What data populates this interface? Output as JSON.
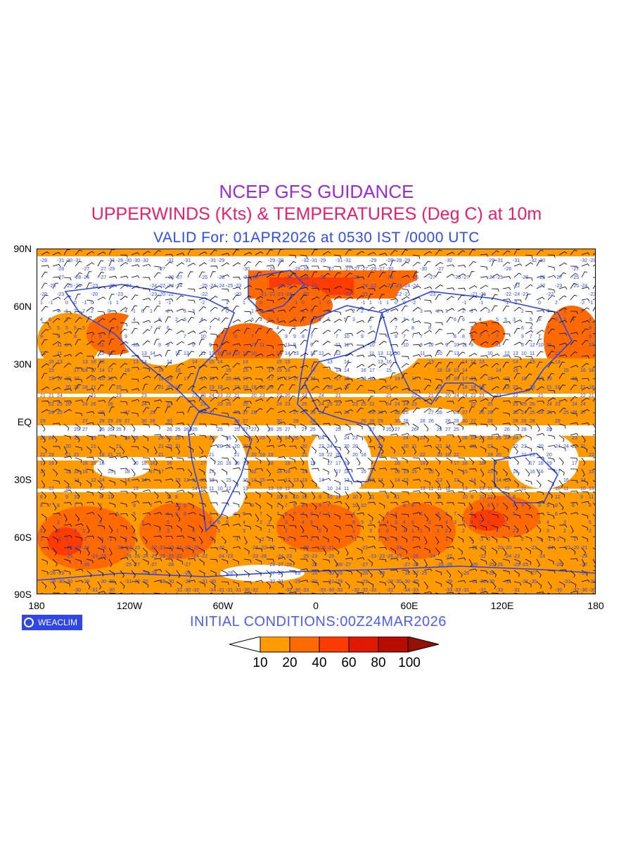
{
  "title": {
    "line1": "NCEP GFS GUIDANCE",
    "line2": "UPPERWINDS (Kts) & TEMPERATURES (Deg C) at 10m",
    "line3": "VALID For: 01APR2026 at 0530 IST /0000 UTC"
  },
  "axes": {
    "lat_labels": [
      "90N",
      "60N",
      "30N",
      "EQ",
      "30S",
      "60S",
      "90S"
    ],
    "lon_labels": [
      "180",
      "120W",
      "60W",
      "0",
      "60E",
      "120E",
      "180"
    ]
  },
  "footer": {
    "brand": "WEACLIM",
    "initial_conditions": "INITIAL CONDITIONS:00Z24MAR2026"
  },
  "legend": {
    "ticks": [
      "10",
      "20",
      "40",
      "60",
      "80",
      "100"
    ],
    "colors": [
      "#ffffff",
      "#ff9a00",
      "#ff6a00",
      "#ff3c00",
      "#e01a00",
      "#b80c00",
      "#961000"
    ]
  },
  "colors": {
    "title1": "#9b2bd8",
    "title2": "#e81e6e",
    "title3": "#2e4cf0",
    "contour": "#2d45f0",
    "barb": "#000000"
  }
}
